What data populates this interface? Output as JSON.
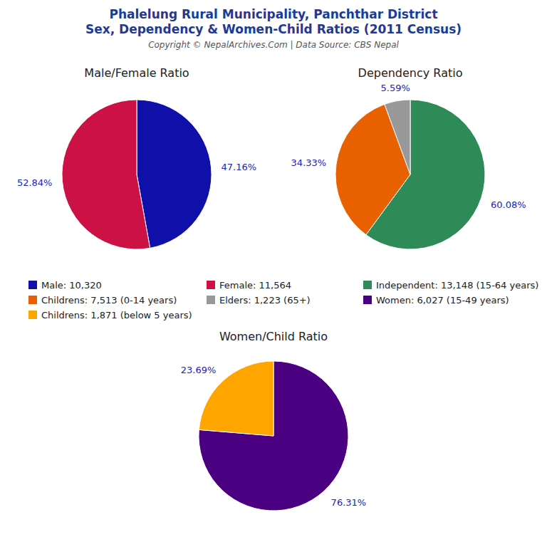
{
  "title": "Phalelung Rural Municipality, Panchthar District",
  "subtitle": "Sex, Dependency & Women-Child Ratios (2011 Census)",
  "annotations": [
    "Copyright © NepalArchives.Com | Data Source: CBS Nepal"
  ],
  "chart_data": [
    {
      "type": "pie",
      "title": "Male/Female Ratio",
      "categories": [
        "Male: 10,320",
        "Female: 11,564"
      ],
      "values": [
        47.16,
        52.84
      ],
      "value_labels": [
        "47.16%",
        "52.84%"
      ],
      "colors": [
        "#0F0FAA",
        "#CC1144"
      ],
      "data_labels": true,
      "legend": "center"
    },
    {
      "type": "pie",
      "title": "Dependency Ratio",
      "categories": [
        "Independent: 13,148 (15-64 years)",
        "Childrens: 7,513 (0-14 years)",
        "Elders: 1,223 (65+)"
      ],
      "values": [
        60.08,
        34.33,
        5.59
      ],
      "value_labels": [
        "60.08%",
        "34.33%",
        "5.59%"
      ],
      "colors": [
        "#2E8B57",
        "#E86000",
        "#999999"
      ],
      "data_labels": true,
      "legend": "center"
    },
    {
      "type": "pie",
      "title": "Women/Child Ratio",
      "categories": [
        "Women: 6,027 (15-49 years)",
        "Childrens: 1,871 (below 5 years)"
      ],
      "values": [
        76.31,
        23.69
      ],
      "value_labels": [
        "76.31%",
        "23.69%"
      ],
      "colors": [
        "#4B0082",
        "#FFA500"
      ],
      "data_labels": true,
      "legend": "center"
    }
  ]
}
